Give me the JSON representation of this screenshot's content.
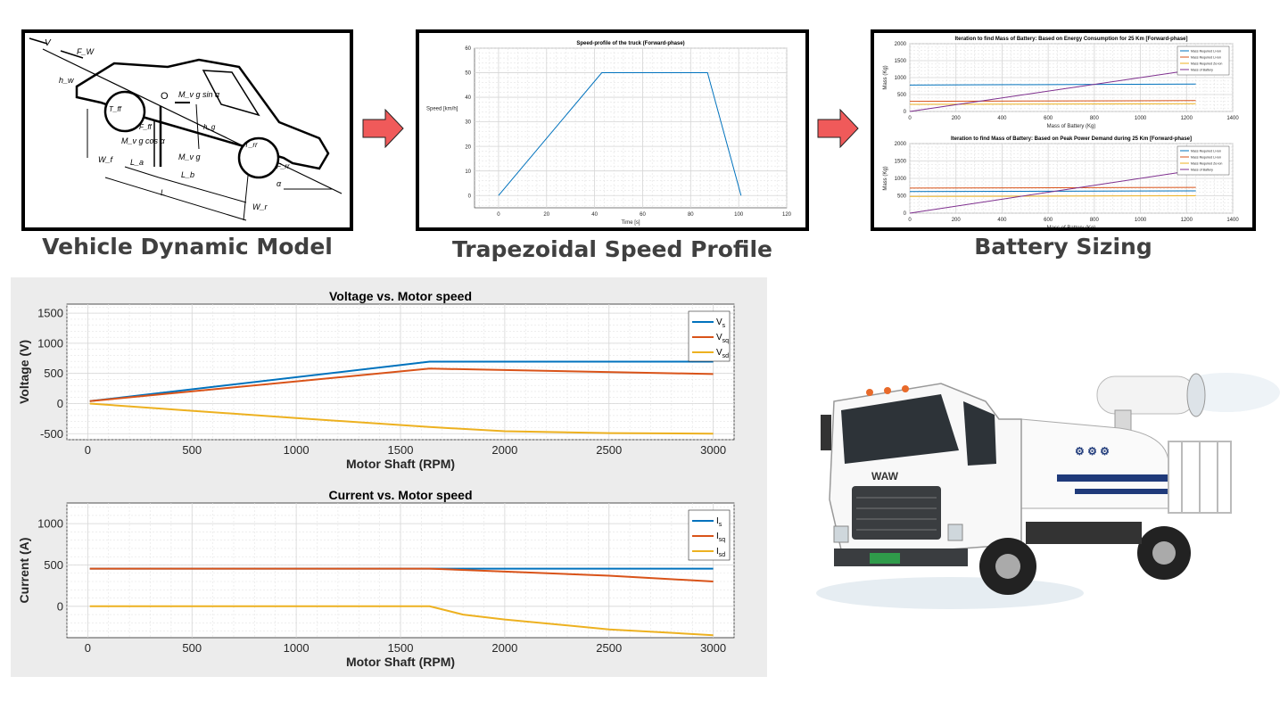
{
  "colors": {
    "blue": "#0072BD",
    "orange": "#D95319",
    "yellow": "#EDB120",
    "purple": "#7E2F8E",
    "arrow_red": "#f05a5a",
    "caption_gray": "#404040"
  },
  "captions": {
    "vehicle": "Vehicle Dynamic Model",
    "speed": "Trapezoidal Speed Profile",
    "battery": "Battery Sizing"
  },
  "vehicle_model": {
    "labels": [
      "V",
      "F_W",
      "h_w",
      "O",
      "M_v g sin α",
      "T_ff",
      "F_ff",
      "h_g",
      "M_v g cos α",
      "M_v g",
      "T_rr",
      "F_rr",
      "W_f",
      "L_a",
      "L_b",
      "L",
      "W_r",
      "α"
    ]
  },
  "truck_plate": "WAW",
  "charts": [
    {
      "type": "line",
      "title": "Speed-profile of the truck (Forward-phase)",
      "xlabel": "Time [s]",
      "ylabel": "Speed [km/h]",
      "xlim": [
        -10,
        120
      ],
      "ylim": [
        -5,
        60
      ],
      "xticks": [
        0,
        20,
        40,
        60,
        80,
        100,
        120
      ],
      "yticks": [
        0,
        10,
        20,
        30,
        40,
        50,
        60
      ],
      "grid": true,
      "series": [
        {
          "x": [
            0,
            43,
            87,
            101
          ],
          "y": [
            0,
            50,
            50,
            0
          ],
          "color": "#0072BD"
        }
      ]
    },
    {
      "type": "line",
      "title": "Iteration to find Mass of Battery: Based on Energy Consumption for 25 Km [Forward-phase]",
      "xlabel": "Mass of Battery (Kg)",
      "ylabel": "Mass (Kg)",
      "xlim": [
        0,
        1400
      ],
      "ylim": [
        0,
        2000
      ],
      "xticks": [
        0,
        200,
        400,
        600,
        800,
        1000,
        1200,
        1400
      ],
      "yticks": [
        0,
        500,
        1000,
        1500,
        2000
      ],
      "grid": true,
      "legend_location": "top-right",
      "legend": [
        "Mass Required Li-ion",
        "Mass Required Li-ion",
        "Mass Required Ze-ion",
        "Mass of Battery"
      ],
      "series": [
        {
          "x": [
            0,
            1240
          ],
          "y": [
            780,
            810
          ],
          "color": "#0072BD"
        },
        {
          "x": [
            0,
            1240
          ],
          "y": [
            300,
            320
          ],
          "color": "#D95319"
        },
        {
          "x": [
            0,
            1240
          ],
          "y": [
            210,
            230
          ],
          "color": "#EDB120"
        },
        {
          "x": [
            0,
            1240
          ],
          "y": [
            0,
            1240
          ],
          "color": "#7E2F8E"
        }
      ]
    },
    {
      "type": "line",
      "title": "Iteration to find Mass of Battery: Based on Peak Power Demand during 25 Km [Forward-phase]",
      "xlabel": "Mass of Battery (Kg)",
      "ylabel": "Mass (Kg)",
      "xlim": [
        0,
        1400
      ],
      "ylim": [
        0,
        2000
      ],
      "xticks": [
        0,
        200,
        400,
        600,
        800,
        1000,
        1200,
        1400
      ],
      "yticks": [
        0,
        500,
        1000,
        1500,
        2000
      ],
      "grid": true,
      "legend_location": "top-right",
      "legend": [
        "Mass Required Li-ion",
        "Mass Required Li-ion",
        "Mass Required Ze-ion",
        "Mass of Battery"
      ],
      "series": [
        {
          "x": [
            0,
            1240
          ],
          "y": [
            620,
            640
          ],
          "color": "#0072BD"
        },
        {
          "x": [
            0,
            1240
          ],
          "y": [
            720,
            740
          ],
          "color": "#D95319"
        },
        {
          "x": [
            0,
            1240
          ],
          "y": [
            480,
            500
          ],
          "color": "#EDB120"
        },
        {
          "x": [
            0,
            1240
          ],
          "y": [
            0,
            1240
          ],
          "color": "#7E2F8E"
        }
      ]
    },
    {
      "type": "line",
      "title": "Voltage vs. Motor speed",
      "xlabel": "Motor Shaft (RPM)",
      "ylabel": "Voltage (V)",
      "xlim": [
        -100,
        3100
      ],
      "ylim": [
        -600,
        1650
      ],
      "xticks": [
        0,
        500,
        1000,
        1500,
        2000,
        2500,
        3000
      ],
      "yticks": [
        -500,
        0,
        500,
        1000,
        1500
      ],
      "grid": true,
      "legend_location": "top-right",
      "series": [
        {
          "name": "V",
          "sub": "s",
          "color": "#0072BD",
          "x": [
            10,
            1640,
            3000
          ],
          "y": [
            40,
            695,
            695
          ]
        },
        {
          "name": "V",
          "sub": "sq",
          "color": "#D95319",
          "x": [
            10,
            1640,
            3000
          ],
          "y": [
            40,
            580,
            490
          ]
        },
        {
          "name": "V",
          "sub": "sd",
          "color": "#EDB120",
          "x": [
            10,
            500,
            1000,
            1640,
            2000,
            2500,
            3000
          ],
          "y": [
            0,
            -120,
            -240,
            -390,
            -460,
            -490,
            -500
          ]
        }
      ]
    },
    {
      "type": "line",
      "title": "Current vs. Motor speed",
      "xlabel": "Motor Shaft (RPM)",
      "ylabel": "Current (A)",
      "xlim": [
        -100,
        3100
      ],
      "ylim": [
        -380,
        1250
      ],
      "xticks": [
        0,
        500,
        1000,
        1500,
        2000,
        2500,
        3000
      ],
      "yticks": [
        0,
        500,
        1000
      ],
      "grid": true,
      "legend_location": "top-right",
      "series": [
        {
          "name": "I",
          "sub": "s",
          "color": "#0072BD",
          "x": [
            10,
            1640,
            3000
          ],
          "y": [
            455,
            455,
            455
          ]
        },
        {
          "name": "I",
          "sub": "sq",
          "color": "#D95319",
          "x": [
            10,
            1640,
            2000,
            2500,
            3000
          ],
          "y": [
            455,
            455,
            420,
            370,
            300
          ]
        },
        {
          "name": "I",
          "sub": "sd",
          "color": "#EDB120",
          "x": [
            10,
            1640,
            1800,
            2000,
            2500,
            3000
          ],
          "y": [
            0,
            0,
            -100,
            -160,
            -280,
            -350
          ]
        }
      ]
    }
  ]
}
